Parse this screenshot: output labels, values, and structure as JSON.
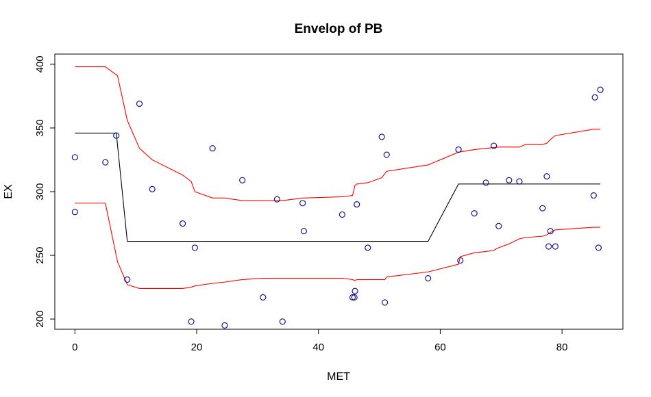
{
  "chart_data": {
    "type": "scatter",
    "title": "Envelop of PB",
    "xlabel": "MET",
    "ylabel": "EX",
    "xlim": [
      -3.3,
      90
    ],
    "ylim": [
      192,
      408
    ],
    "xticks": [
      0,
      20,
      40,
      60,
      80
    ],
    "yticks": [
      200,
      250,
      300,
      350,
      400
    ],
    "grid": false,
    "legend": "none",
    "colors": {
      "points": "#00008b",
      "envelope": "#ff0000",
      "fit": "#000000"
    },
    "points": [
      [
        0,
        327
      ],
      [
        0,
        284
      ],
      [
        5,
        323
      ],
      [
        6.8,
        344
      ],
      [
        8.6,
        231
      ],
      [
        10.6,
        369
      ],
      [
        12.7,
        302
      ],
      [
        17.7,
        275
      ],
      [
        19.1,
        198
      ],
      [
        19.7,
        256
      ],
      [
        22.6,
        334
      ],
      [
        24.6,
        195
      ],
      [
        27.5,
        309
      ],
      [
        30.9,
        217
      ],
      [
        33.2,
        294
      ],
      [
        34.1,
        198
      ],
      [
        37.4,
        291
      ],
      [
        37.6,
        269
      ],
      [
        43.9,
        282
      ],
      [
        45.6,
        217
      ],
      [
        45.9,
        217
      ],
      [
        46.0,
        222
      ],
      [
        46.3,
        290
      ],
      [
        48.1,
        256
      ],
      [
        50.4,
        343
      ],
      [
        50.9,
        213
      ],
      [
        51.2,
        329
      ],
      [
        58,
        232
      ],
      [
        63.0,
        333
      ],
      [
        63.3,
        246
      ],
      [
        65.6,
        283
      ],
      [
        67.5,
        307
      ],
      [
        68.8,
        336
      ],
      [
        69.6,
        273
      ],
      [
        71.3,
        309
      ],
      [
        73.0,
        308
      ],
      [
        76.8,
        287
      ],
      [
        77.5,
        312
      ],
      [
        77.8,
        257
      ],
      [
        78.1,
        269
      ],
      [
        78.9,
        257
      ],
      [
        85.2,
        297
      ],
      [
        85.4,
        374
      ],
      [
        86.0,
        256
      ],
      [
        86.3,
        380
      ]
    ],
    "series": [
      {
        "kind": "upper-envelope",
        "x": [
          0,
          5,
          7,
          8.6,
          10.6,
          12.7,
          17.7,
          19.1,
          19.7,
          22.6,
          24.6,
          27.5,
          30.9,
          33.2,
          34.1,
          37.4,
          37.6,
          43.9,
          45.6,
          46.0,
          46.3,
          48.1,
          50.4,
          51.2,
          58,
          63,
          65.6,
          67.5,
          69.6,
          71.3,
          73,
          74,
          76.8,
          77.5,
          78.1,
          78.9,
          85.2,
          86.3
        ],
        "y": [
          398,
          398,
          391,
          356,
          334,
          325,
          313,
          308,
          300,
          295,
          295,
          293,
          293,
          293,
          293,
          295,
          295,
          296,
          297,
          305,
          306,
          307,
          311,
          316,
          321,
          331,
          333,
          334,
          335,
          335,
          335,
          337,
          337,
          338,
          341,
          344,
          349,
          349
        ]
      },
      {
        "kind": "lower-envelope",
        "x": [
          0,
          5,
          7,
          8.6,
          10.6,
          12.7,
          17.7,
          19.1,
          19.7,
          22.6,
          24.6,
          27.5,
          30.9,
          33.2,
          37.4,
          43.9,
          45.6,
          46.0,
          46.3,
          48.1,
          50.9,
          51.2,
          58,
          63,
          63.3,
          65.6,
          67.5,
          68.8,
          69.6,
          71.3,
          73,
          74,
          76.8,
          77.5,
          78.1,
          78.9,
          85.2,
          86.3
        ],
        "y": [
          291,
          291,
          245,
          227,
          224,
          224,
          224,
          225,
          226,
          228,
          229,
          231,
          232,
          232,
          232,
          232,
          231,
          230,
          231,
          231,
          231,
          233,
          237,
          243,
          249,
          252,
          253,
          254,
          256,
          259,
          263,
          264,
          265,
          266,
          268,
          270,
          272,
          272
        ]
      },
      {
        "kind": "fitted-step",
        "x": [
          0,
          6.8,
          8.6,
          58,
          63,
          86.3
        ],
        "y": [
          346,
          346,
          261,
          261,
          306,
          306
        ]
      }
    ]
  }
}
